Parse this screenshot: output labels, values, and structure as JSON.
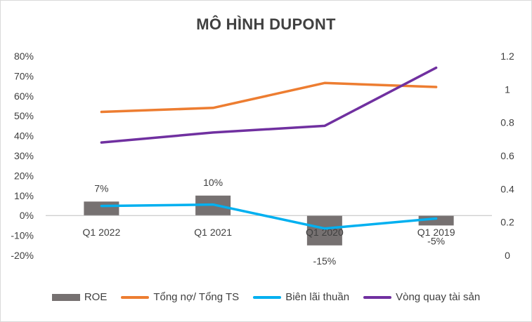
{
  "chart_data": {
    "type": "bar+line",
    "title": "MÔ HÌNH DUPONT",
    "categories": [
      "Q1 2022",
      "Q1 2021",
      "Q1 2020",
      "Q1 2019"
    ],
    "y_left": {
      "ticks": [
        "-20%",
        "-10%",
        "0%",
        "10%",
        "20%",
        "30%",
        "40%",
        "50%",
        "60%",
        "70%",
        "80%"
      ],
      "range": [
        -0.2,
        0.8
      ]
    },
    "y_right": {
      "ticks": [
        "0",
        "0.2",
        "0.4",
        "0.6",
        "0.8",
        "1",
        "1.2"
      ],
      "range": [
        0,
        1.2
      ]
    },
    "series": [
      {
        "name": "ROE",
        "type": "bar",
        "axis": "left",
        "color": "#767171",
        "values": [
          0.07,
          0.1,
          -0.15,
          -0.05
        ],
        "labels": [
          "7%",
          "10%",
          "-15%",
          "-5%"
        ]
      },
      {
        "name": "Tổng nợ/ Tổng TS",
        "type": "line",
        "axis": "left",
        "color": "#ED7D31",
        "values": [
          0.52,
          0.54,
          0.665,
          0.645
        ]
      },
      {
        "name": "Biên lãi thuần",
        "type": "line",
        "axis": "left",
        "color": "#00B0F0",
        "values": [
          0.048,
          0.055,
          -0.065,
          -0.015
        ]
      },
      {
        "name": "Vòng quay tài sản",
        "type": "line",
        "axis": "right",
        "color": "#7030A0",
        "values": [
          0.68,
          0.74,
          0.78,
          1.13
        ]
      }
    ],
    "grid": false,
    "legend": "bottom"
  }
}
